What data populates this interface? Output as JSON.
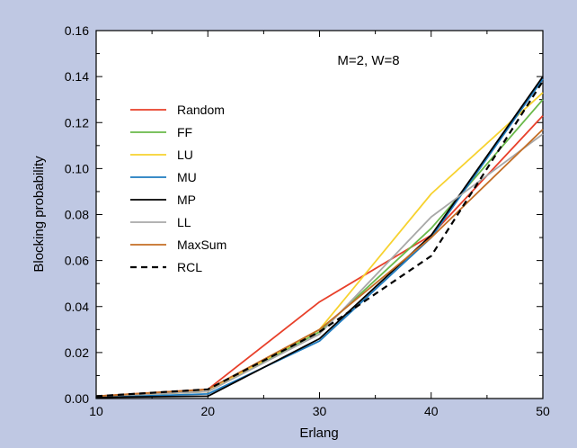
{
  "chart_data": {
    "type": "line",
    "annotation": "M=2, W=8",
    "xlabel": "Erlang",
    "ylabel": "Blocking probability",
    "xlim": [
      10,
      50
    ],
    "ylim": [
      0,
      0.16
    ],
    "x_ticks": [
      "10",
      "20",
      "30",
      "40",
      "50"
    ],
    "y_ticks": [
      "0.00",
      "0.02",
      "0.04",
      "0.06",
      "0.08",
      "0.10",
      "0.12",
      "0.14",
      "0.16"
    ],
    "grid": false,
    "legend_position": "upper-left",
    "x": [
      10,
      20,
      30,
      40,
      50
    ],
    "series": [
      {
        "name": "Random",
        "color": "#e8402a",
        "dash": "solid",
        "values": [
          0.001,
          0.004,
          0.042,
          0.071,
          0.123
        ]
      },
      {
        "name": "FF",
        "color": "#6ab94a",
        "dash": "solid",
        "values": [
          0.001,
          0.003,
          0.029,
          0.074,
          0.13
        ]
      },
      {
        "name": "LU",
        "color": "#f7d22f",
        "dash": "solid",
        "values": [
          0.001,
          0.003,
          0.03,
          0.089,
          0.133
        ]
      },
      {
        "name": "MU",
        "color": "#1e7bbf",
        "dash": "solid",
        "values": [
          0.0005,
          0.002,
          0.025,
          0.07,
          0.139
        ]
      },
      {
        "name": "MP",
        "color": "#000000",
        "dash": "solid",
        "values": [
          0.0005,
          0.001,
          0.026,
          0.071,
          0.14
        ]
      },
      {
        "name": "LL",
        "color": "#a8a8a8",
        "dash": "solid",
        "values": [
          0.001,
          0.003,
          0.028,
          0.079,
          0.115
        ]
      },
      {
        "name": "MaxSum",
        "color": "#c46e25",
        "dash": "solid",
        "values": [
          0.001,
          0.004,
          0.03,
          0.07,
          0.117
        ]
      },
      {
        "name": "RCL",
        "color": "#000000",
        "dash": "dashed",
        "values": [
          0.001,
          0.004,
          0.029,
          0.062,
          0.138
        ]
      }
    ]
  }
}
